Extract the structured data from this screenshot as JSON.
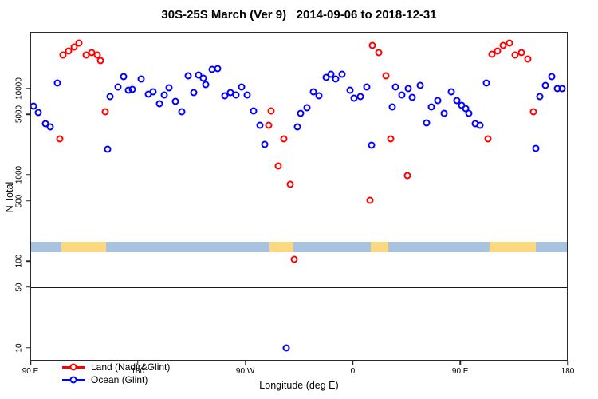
{
  "title": "30S-25S March (Ver 9)   2014-09-06 to 2018-12-31",
  "colors": {
    "land_series": "#FF0000",
    "ocean_series": "#0000FF",
    "map_land": "#FCD880",
    "map_ocean": "#A9C2E0",
    "axis": "#2a2a2a"
  },
  "axes": {
    "x_label": "Longitude (deg E)",
    "y_label": "N Total",
    "x_ticks": [
      {
        "pos": 90,
        "label": "90 E"
      },
      {
        "pos": 180,
        "label": "180"
      },
      {
        "pos": 270,
        "label": "90 W"
      },
      {
        "pos": 360,
        "label": "0"
      },
      {
        "pos": 450,
        "label": "90 E"
      },
      {
        "pos": 540,
        "label": "180"
      }
    ],
    "y_ticks": [
      {
        "value": 10,
        "label": "10"
      },
      {
        "value": 50,
        "label": "50"
      },
      {
        "value": 100,
        "label": "100"
      },
      {
        "value": 500,
        "label": "500"
      },
      {
        "value": 1000,
        "label": "1000"
      },
      {
        "value": 5000,
        "label": "5000"
      },
      {
        "value": 10000,
        "label": "10000"
      }
    ]
  },
  "legend": {
    "items": [
      {
        "label": "Land (Nadir&Glint)",
        "color": "#FF0000"
      },
      {
        "label": "Ocean (Glint)",
        "color": "#0000FF"
      }
    ]
  },
  "chart_data": {
    "type": "scatter",
    "title": "30S-25S March (Ver 9)   2014-09-06 to 2018-12-31",
    "xlabel": "Longitude (deg E)",
    "ylabel": "N Total",
    "x_axis_note": "longitude axis runs 90E eastward through 180, 90W, 0, 90E to 180 (450 deg span, positions 90-540)",
    "x_range": [
      90,
      540
    ],
    "y_scale": "log",
    "y_range_shown": [
      10,
      10000
    ],
    "grid": false,
    "legend_position": "bottom-left inside plot",
    "reference_line_n": 50,
    "map_strip": {
      "n_range": [
        128,
        169
      ],
      "ocean_extent": [
        90,
        540
      ],
      "land_segments": [
        [
          116,
          153.5
        ],
        [
          290.5,
          310.5
        ],
        [
          375,
          389.5
        ],
        [
          474.5,
          513
        ]
      ]
    },
    "series": [
      {
        "name": "Land (Nadir&Glint)",
        "color": "#FF0000",
        "points": [
          [
            117.5,
            24000
          ],
          [
            122,
            27000
          ],
          [
            126.5,
            30000
          ],
          [
            131,
            33000
          ],
          [
            137,
            24000
          ],
          [
            141.5,
            26000
          ],
          [
            146,
            24000
          ],
          [
            148.5,
            21000
          ],
          [
            153,
            5400
          ],
          [
            114.5,
            2600
          ],
          [
            289.5,
            3700
          ],
          [
            291.5,
            5500
          ],
          [
            297.5,
            1250
          ],
          [
            302.5,
            2600
          ],
          [
            307.5,
            780
          ],
          [
            311,
            104
          ],
          [
            374.5,
            510
          ],
          [
            376.5,
            31000
          ],
          [
            382,
            26000
          ],
          [
            387.5,
            14000
          ],
          [
            391.5,
            2600
          ],
          [
            406,
            970
          ],
          [
            473.5,
            2600
          ],
          [
            476.5,
            25000
          ],
          [
            481.5,
            27000
          ],
          [
            486,
            31000
          ],
          [
            491,
            33000
          ],
          [
            496,
            24000
          ],
          [
            501.5,
            26000
          ],
          [
            506.5,
            22000
          ],
          [
            511,
            5400
          ]
        ]
      },
      {
        "name": "Ocean (Glint)",
        "color": "#0000FF",
        "points": [
          [
            93,
            6200
          ],
          [
            96.5,
            5200
          ],
          [
            103,
            3850
          ],
          [
            106.5,
            3600
          ],
          [
            113,
            11600
          ],
          [
            154.5,
            1960
          ],
          [
            157,
            8000
          ],
          [
            163.5,
            10400
          ],
          [
            168,
            13600
          ],
          [
            172,
            9600
          ],
          [
            175.5,
            9800
          ],
          [
            183,
            12900
          ],
          [
            188.5,
            8500
          ],
          [
            192.5,
            9200
          ],
          [
            198,
            6600
          ],
          [
            202,
            8400
          ],
          [
            206.5,
            10200
          ],
          [
            211.5,
            7000
          ],
          [
            217,
            5400
          ],
          [
            222.5,
            14000
          ],
          [
            227,
            9000
          ],
          [
            231,
            14200
          ],
          [
            235,
            13100
          ],
          [
            237,
            11000
          ],
          [
            242,
            16500
          ],
          [
            247,
            16700
          ],
          [
            253,
            8200
          ],
          [
            257.5,
            8900
          ],
          [
            262,
            8300
          ],
          [
            267,
            10400
          ],
          [
            271.5,
            8400
          ],
          [
            277,
            5500
          ],
          [
            282.5,
            3700
          ],
          [
            286.5,
            2250
          ],
          [
            304,
            10
          ],
          [
            313.5,
            3600
          ],
          [
            316.5,
            5100
          ],
          [
            322,
            6000
          ],
          [
            327,
            9200
          ],
          [
            332,
            8200
          ],
          [
            337.5,
            13300
          ],
          [
            342,
            14600
          ],
          [
            346,
            12900
          ],
          [
            351,
            14600
          ],
          [
            357.5,
            9500
          ],
          [
            361,
            7700
          ],
          [
            366.5,
            8100
          ],
          [
            372,
            10400
          ],
          [
            376,
            2170
          ],
          [
            393,
            6100
          ],
          [
            395.5,
            10400
          ],
          [
            401,
            8300
          ],
          [
            406.5,
            10000
          ],
          [
            410,
            7900
          ],
          [
            416.5,
            10800
          ],
          [
            422,
            4000
          ],
          [
            426,
            6100
          ],
          [
            431.5,
            7200
          ],
          [
            436.5,
            5100
          ],
          [
            442.5,
            9200
          ],
          [
            447,
            7200
          ],
          [
            451,
            6300
          ],
          [
            454.5,
            5800
          ],
          [
            457.5,
            5100
          ],
          [
            462.5,
            3850
          ],
          [
            466.5,
            3700
          ],
          [
            472,
            11600
          ],
          [
            513.5,
            2000
          ],
          [
            516.5,
            8000
          ],
          [
            521.5,
            10700
          ],
          [
            526.5,
            13700
          ],
          [
            531,
            9900
          ],
          [
            535.5,
            9900
          ]
        ]
      }
    ]
  }
}
